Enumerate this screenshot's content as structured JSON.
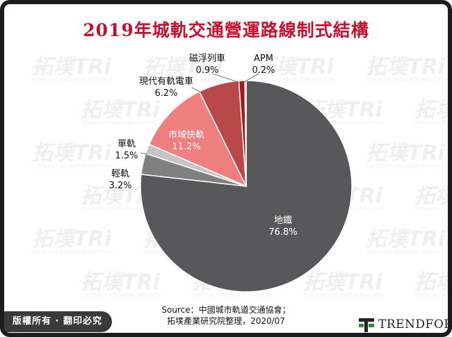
{
  "title": "2019年城軌交通營運路線制式結構",
  "chart_data": {
    "type": "pie",
    "title": "2019年城軌交通營運路線制式結構",
    "slices": [
      {
        "label": "地鐵",
        "value": 76.8,
        "display": "76.8%",
        "color": "#58585a"
      },
      {
        "label": "輕軌",
        "value": 3.2,
        "display": "3.2%",
        "color": "#808080"
      },
      {
        "label": "單軌",
        "value": 1.5,
        "display": "1.5%",
        "color": "#c4c4c4"
      },
      {
        "label": "市域快軌",
        "value": 11.2,
        "display": "11.2%",
        "color": "#ef7f7f"
      },
      {
        "label": "現代有軌電車",
        "value": 6.2,
        "display": "6.2%",
        "color": "#b84848"
      },
      {
        "label": "磁浮列車",
        "value": 0.9,
        "display": "0.9%",
        "color": "#a01a1a"
      },
      {
        "label": "APM",
        "value": 0.2,
        "display": "0.2%",
        "color": "#ff1010"
      }
    ]
  },
  "source": {
    "line1": "Source：中國城市軌道交通協會；",
    "line2": "拓墣產業研究院整理，2020/07"
  },
  "footer": {
    "copyright": "版權所有 · 翻印必究",
    "logo_text": "TRENDFORCE"
  },
  "watermark": {
    "text": "拓墣TRi",
    "subtext": "TOPOLOGY RESEARCH INSTITUTE"
  },
  "colors": {
    "title": "#c8102e",
    "frame": "#1c1c1c",
    "logo_green": "#2e8b3a"
  }
}
